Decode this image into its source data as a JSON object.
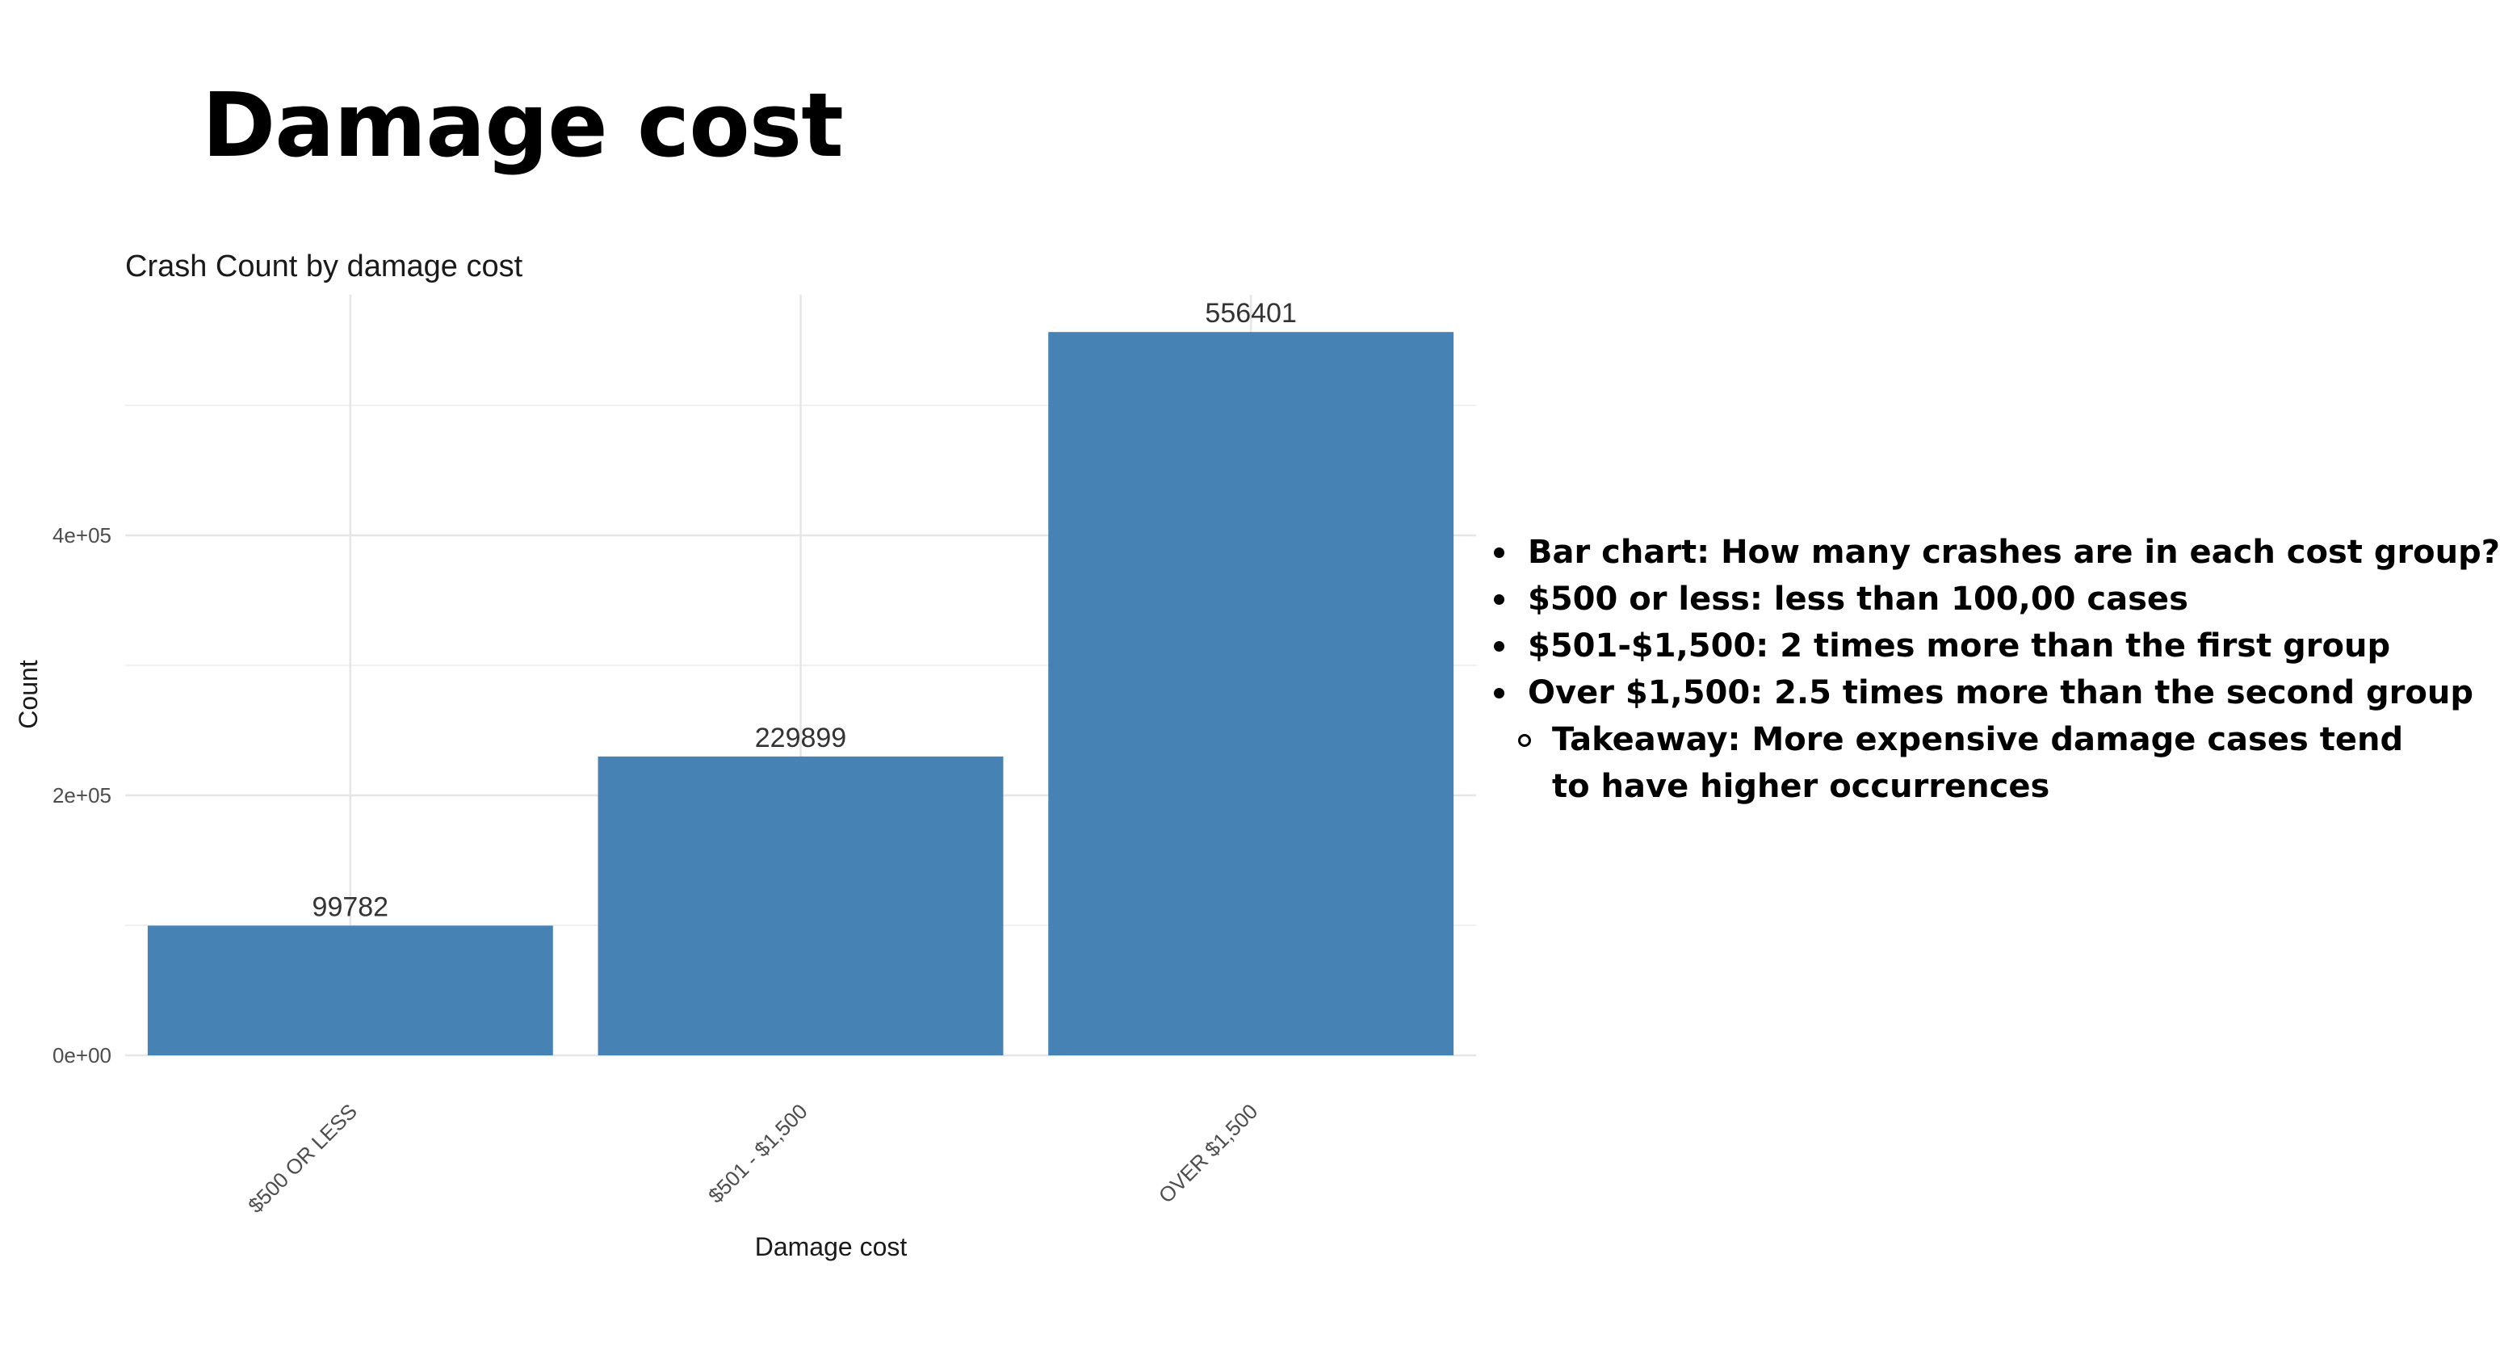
{
  "slide": {
    "title": "Damage cost"
  },
  "chart_data": {
    "type": "bar",
    "title": "Crash Count by damage cost",
    "xlabel": "Damage cost",
    "ylabel": "Count",
    "categories": [
      "$500 OR LESS",
      "$501 - $1,500",
      "OVER $1,500"
    ],
    "values": [
      99782,
      229899,
      556401
    ],
    "data_labels": [
      "99782",
      "229899",
      "556401"
    ],
    "yticks": [
      0,
      200000,
      400000
    ],
    "ytick_labels": [
      "0e+00",
      "2e+05",
      "4e+05"
    ],
    "ylim": [
      0,
      600000
    ],
    "bar_color": "#4682b4",
    "grid": true,
    "legend": "none"
  },
  "notes": {
    "bullets": [
      "Bar chart: How many crashes are in each cost group?",
      "$500 or less: less than 100,00 cases",
      "$501-$1,500: 2 times more than the first group",
      "Over $1,500:  2.5 times more than the second group"
    ],
    "sub_bullets": [
      "Takeaway: More expensive damage cases tend to have higher occurrences"
    ]
  }
}
